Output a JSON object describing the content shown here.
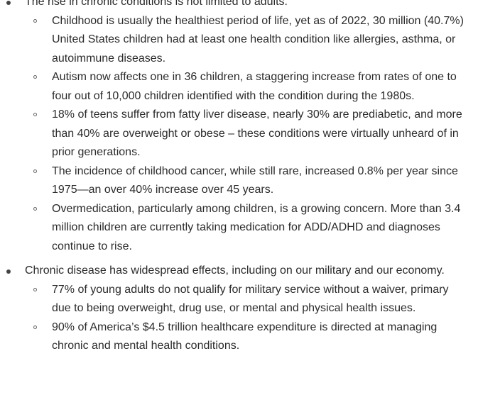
{
  "items": [
    {
      "text": "The rise in chronic conditions is not limited to adults.",
      "subitems": [
        "Childhood is usually the healthiest period of life, yet as of 2022, 30 million (40.7%) United States children had at least one health condition like allergies, asthma, or autoimmune diseases.",
        "Autism now affects one in 36 children, a staggering increase from rates of one to four out of 10,000 children identified with the condition during the 1980s.",
        "18% of teens suffer from fatty liver disease, nearly 30% are prediabetic, and more than 40% are overweight or obese – these conditions were virtually unheard of in prior generations.",
        "The incidence of childhood cancer, while still rare, increased 0.8% per year since 1975—an over 40% increase over 45 years.",
        "Overmedication, particularly among children, is a growing concern. More than 3.4 million children are currently taking medication for ADD/ADHD and diagnoses continue to rise."
      ]
    },
    {
      "text": "Chronic disease has widespread effects, including on our military and our economy.",
      "subitems": [
        "77% of young adults do not qualify for military service without a waiver, primary due to being overweight, drug use, or mental and physical health issues.",
        "90% of America’s $4.5 trillion healthcare expenditure is directed at managing chronic and mental health conditions."
      ]
    }
  ]
}
